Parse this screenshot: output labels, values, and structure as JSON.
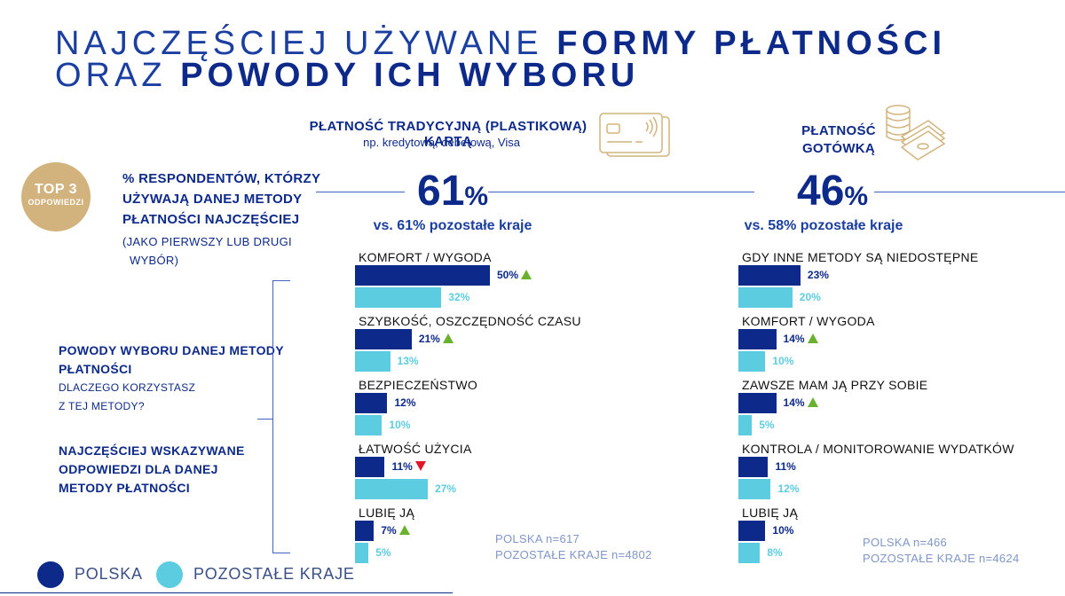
{
  "title": {
    "line1_a": "NAJCZĘŚCIEJ UŻYWANE ",
    "line1_b": "FORMY PŁATNOŚCI",
    "line2_a": "ORAZ ",
    "line2_b": "POWODY ICH WYBORU"
  },
  "badge": {
    "line1": "TOP 3",
    "line2": "ODPOWIEDZI"
  },
  "left_panel": {
    "metric_line1": "% RESPONDENTÓW, KTÓRZY",
    "metric_line2": "UŻYWAJĄ DANEJ METODY",
    "metric_line3": "PŁATNOŚCI NAJCZĘŚCIEJ",
    "metric_note1": "(JAKO PIERWSZY LUB DRUGI",
    "metric_note2": "WYBÓR)",
    "reasons_line1": "POWODY WYBORU DANEJ METODY",
    "reasons_line2": "PŁATNOŚCI",
    "reasons_sub1": "DLACZEGO KORZYSTASZ",
    "reasons_sub2": "Z TEJ METODY?",
    "top_line1": "NAJCZĘŚCIEJ WSKAZYWANE",
    "top_line2": "ODPOWIEDZI DLA DANEJ",
    "top_line3": "METODY PŁATNOŚCI"
  },
  "card": {
    "heading": "PŁATNOŚĆ TRADYCYJNĄ (PLASTIKOWĄ) KARTĄ",
    "subheading": "np. kredytową, debetową, Visa",
    "share_number": "61",
    "share_unit": "%",
    "vs_text": "vs. 61% pozostałe kraje",
    "sample_pl": "POLSKA n=617",
    "sample_ot": "POZOSTAŁE KRAJE n=4802",
    "icon": "credit-card-icon"
  },
  "cash": {
    "heading_line1": "PŁATNOŚĆ",
    "heading_line2": "GOTÓWKĄ",
    "share_number": "46",
    "share_unit": "%",
    "vs_text": "vs. 58% pozostałe kraje",
    "sample_pl": "POLSKA n=466",
    "sample_ot": "POZOSTAŁE KRAJE n=4624",
    "icon": "cash-coins-icon"
  },
  "legend": {
    "pl": "POLSKA",
    "ot": "POZOSTAŁE KRAJE"
  },
  "colors": {
    "polska": "#0d2a8a",
    "pozostale": "#5ccde0",
    "up": "#6ab12f",
    "down": "#e2172b",
    "badge": "#d3b37d"
  },
  "chart_data": [
    {
      "type": "bar",
      "title": "PŁATNOŚĆ TRADYCYJNĄ (PLASTIKOWĄ) KARTĄ",
      "categories": [
        "KOMFORT / WYGODA",
        "SZYBKOŚĆ, OSZCZĘDNOŚĆ CZASU",
        "BEZPIECZEŃSTWO",
        "ŁATWOŚĆ UŻYCIA",
        "LUBIĘ JĄ"
      ],
      "series": [
        {
          "name": "POLSKA",
          "values": [
            50,
            21,
            12,
            11,
            7
          ],
          "labels": [
            "50%",
            "21%",
            "12%",
            "11%",
            "7%"
          ],
          "trend": [
            "up",
            "up",
            "",
            "down",
            "up"
          ]
        },
        {
          "name": "POZOSTAŁE KRAJE",
          "values": [
            32,
            13,
            10,
            27,
            5
          ],
          "labels": [
            "32%",
            "13%",
            "10%",
            "27%",
            "5%"
          ]
        }
      ],
      "xlim": [
        0,
        50
      ],
      "orientation": "horizontal"
    },
    {
      "type": "bar",
      "title": "PŁATNOŚĆ GOTÓWKĄ",
      "categories": [
        "GDY INNE METODY SĄ NIEDOSTĘPNE",
        "KOMFORT / WYGODA",
        "ZAWSZE MAM JĄ PRZY SOBIE",
        "KONTROLA / MONITOROWANIE WYDATKÓW",
        "LUBIĘ JĄ"
      ],
      "series": [
        {
          "name": "POLSKA",
          "values": [
            23,
            14,
            14,
            11,
            10
          ],
          "labels": [
            "23%",
            "14%",
            "14%",
            "11%",
            "10%"
          ],
          "trend": [
            "",
            "up",
            "up",
            "",
            ""
          ]
        },
        {
          "name": "POZOSTAŁE KRAJE",
          "values": [
            20,
            10,
            5,
            12,
            8
          ],
          "labels": [
            "20%",
            "10%",
            "5%",
            "12%",
            "8%"
          ]
        }
      ],
      "xlim": [
        0,
        50
      ],
      "orientation": "horizontal"
    }
  ]
}
